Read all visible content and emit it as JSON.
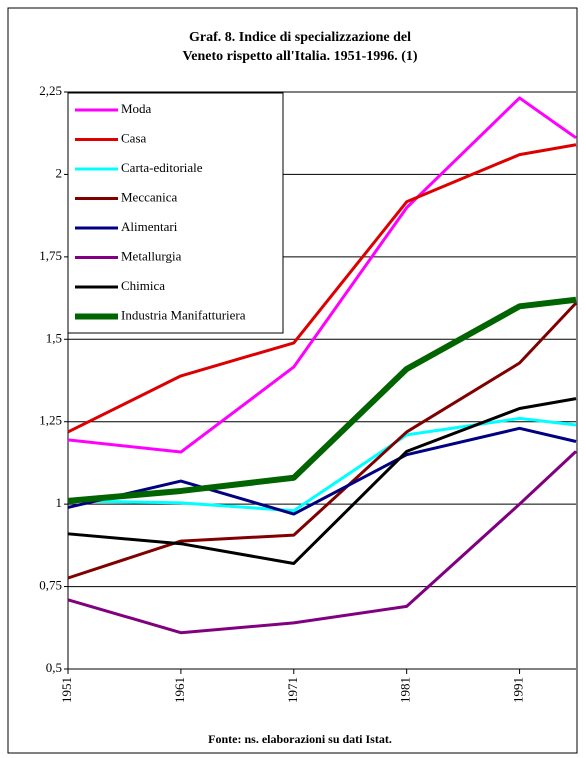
{
  "chart_data": {
    "type": "line",
    "title": [
      "Graf. 8. Indice di specializzazione del",
      "Veneto rispetto all'Italia. 1951-1996. (1)"
    ],
    "source": "Fonte: ns. elaborazioni su dati Istat.",
    "x": [
      1951,
      1961,
      1971,
      1981,
      1991,
      1996
    ],
    "xlim": [
      1951,
      1996
    ],
    "xticks": [
      1951,
      1961,
      1971,
      1981,
      1991
    ],
    "ylim": [
      0.5,
      2.25
    ],
    "yticks": [
      {
        "value": 0.5,
        "label": "0,5"
      },
      {
        "value": 0.75,
        "label": "0,75"
      },
      1,
      {
        "value": 1.25,
        "label": "1,25"
      },
      {
        "value": 1.5,
        "label": "1,5"
      },
      {
        "value": 1.75,
        "label": "1,75"
      },
      2,
      {
        "value": 2.25,
        "label": "2,25"
      }
    ],
    "grid": true,
    "legend": "upper left",
    "series": [
      {
        "name": "Moda",
        "color": "#ff00ff",
        "width": 3,
        "values": [
          1.195,
          1.158,
          1.416,
          1.899,
          2.232,
          2.111
        ]
      },
      {
        "name": "Casa",
        "color": "#dd0000",
        "width": 3,
        "values": [
          1.219,
          1.389,
          1.489,
          1.917,
          2.06,
          2.09
        ]
      },
      {
        "name": "Carta-editoriale",
        "color": "#00ffff",
        "width": 3,
        "values": [
          1.01,
          1.004,
          0.98,
          1.21,
          1.26,
          1.24
        ]
      },
      {
        "name": "Meccanica",
        "color": "#800000",
        "width": 3,
        "values": [
          0.776,
          0.888,
          0.906,
          1.219,
          1.428,
          1.61
        ]
      },
      {
        "name": "Alimentari",
        "color": "#000080",
        "width": 3,
        "values": [
          0.99,
          1.07,
          0.97,
          1.15,
          1.23,
          1.19
        ]
      },
      {
        "name": "Metallurgia",
        "color": "#800080",
        "width": 3,
        "values": [
          0.71,
          0.61,
          0.64,
          0.69,
          1.0,
          1.16
        ]
      },
      {
        "name": "Chimica",
        "color": "#000000",
        "width": 3,
        "values": [
          0.91,
          0.88,
          0.82,
          1.16,
          1.29,
          1.32
        ]
      },
      {
        "name": "Industria Manifatturiera",
        "color": "#006400",
        "width": 6,
        "values": [
          1.01,
          1.04,
          1.08,
          1.41,
          1.6,
          1.62
        ]
      }
    ]
  }
}
